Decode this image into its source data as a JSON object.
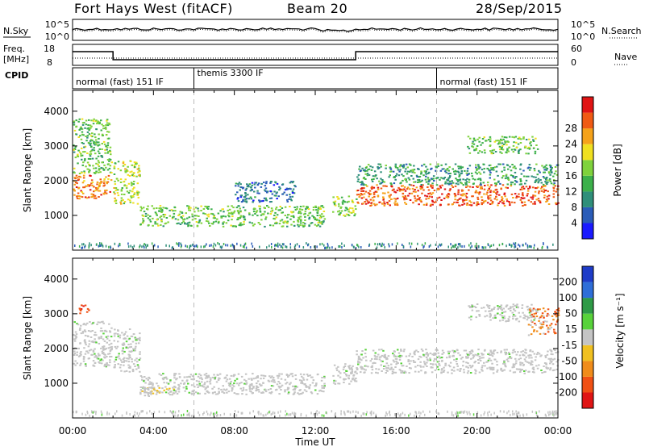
{
  "header": {
    "station": "Fort Hays West (fitACF)",
    "beam": "Beam 20",
    "date": "28/Sep/2015"
  },
  "noise_panel": {
    "left_label": "N.Sky",
    "left_ticks": [
      "10^5",
      "10^0"
    ],
    "right_label": "N.Search",
    "right_ticks": [
      "10^5",
      "10^0"
    ]
  },
  "freq_panel": {
    "left_label_1": "Freq.",
    "left_label_2": "[MHz]",
    "left_ticks": [
      "18",
      "8"
    ],
    "right_label": "Nave",
    "right_ticks": [
      "60",
      "0"
    ]
  },
  "cpid": {
    "label": "CPID",
    "segments": [
      {
        "name": "normal (fast) 151 IF",
        "start_hour": 0,
        "end_hour": 6
      },
      {
        "name": "themis 3300 IF",
        "start_hour": 6,
        "end_hour": 18
      },
      {
        "name": "normal (fast) 151 IF",
        "start_hour": 18,
        "end_hour": 24
      }
    ]
  },
  "xaxis": {
    "label": "Time UT",
    "ticks": [
      "00:00",
      "04:00",
      "08:00",
      "12:00",
      "16:00",
      "20:00",
      "00:00"
    ]
  },
  "power_colorbar": {
    "label": "Power [dB]",
    "ticks": [
      "4",
      "8",
      "12",
      "16",
      "20",
      "24",
      "28"
    ],
    "colors": [
      "#1a1aff",
      "#2a5cb8",
      "#2f8f7a",
      "#3cb04a",
      "#7fd23c",
      "#f0e020",
      "#f5a21a",
      "#f05a14",
      "#e01414"
    ]
  },
  "velocity_colorbar": {
    "label": "Velocity [m s⁻¹]",
    "ticks": [
      "200",
      "100",
      "50",
      "15",
      "-15",
      "-50",
      "-100",
      "-200"
    ],
    "colors": [
      "#1e3cc8",
      "#2e6ed8",
      "#2e9a46",
      "#58d23a",
      "#c4c4c4",
      "#f0c020",
      "#f08c1a",
      "#f05014",
      "#e01414"
    ]
  },
  "chart_data": [
    {
      "type": "heatmap",
      "panel": "power",
      "ylabel": "Slant Range [km]",
      "ylim": [
        0,
        4600
      ],
      "y_ticks": [
        1000,
        2000,
        3000,
        4000
      ],
      "xlim_hours": [
        0,
        24
      ],
      "value_units": "dB",
      "echo_bands": [
        {
          "start_hour": 0.0,
          "end_hour": 1.9,
          "range_km": [
            1500,
            2200
          ],
          "power_db": 26
        },
        {
          "start_hour": 0.0,
          "end_hour": 1.9,
          "range_km": [
            2200,
            3800
          ],
          "power_db": 14
        },
        {
          "start_hour": 2.0,
          "end_hour": 3.3,
          "range_km": [
            1350,
            2600
          ],
          "power_db": 18
        },
        {
          "start_hour": 3.3,
          "end_hour": 12.5,
          "range_km": [
            700,
            1300
          ],
          "power_db": 14
        },
        {
          "start_hour": 8.0,
          "end_hour": 11.0,
          "range_km": [
            1400,
            2000
          ],
          "power_db": 6
        },
        {
          "start_hour": 12.8,
          "end_hour": 14.0,
          "range_km": [
            1000,
            1600
          ],
          "power_db": 16
        },
        {
          "start_hour": 14.0,
          "end_hour": 24.0,
          "range_km": [
            1300,
            1900
          ],
          "power_db": 28
        },
        {
          "start_hour": 14.0,
          "end_hour": 24.0,
          "range_km": [
            1900,
            2500
          ],
          "power_db": 10
        },
        {
          "start_hour": 19.5,
          "end_hour": 23.0,
          "range_km": [
            2800,
            3300
          ],
          "power_db": 14
        }
      ]
    },
    {
      "type": "heatmap",
      "panel": "velocity",
      "ylabel": "Slant Range [km]",
      "ylim": [
        0,
        4600
      ],
      "y_ticks": [
        1000,
        2000,
        3000,
        4000
      ],
      "xlim_hours": [
        0,
        24
      ],
      "value_units": "m s-1",
      "echo_bands": [
        {
          "start_hour": 0.0,
          "end_hour": 1.9,
          "range_km": [
            1500,
            2800
          ],
          "velocity": 0
        },
        {
          "start_hour": 0.3,
          "end_hour": 0.8,
          "range_km": [
            3000,
            3300
          ],
          "velocity": -200
        },
        {
          "start_hour": 2.0,
          "end_hour": 3.3,
          "range_km": [
            1350,
            2600
          ],
          "velocity": 0
        },
        {
          "start_hour": 3.3,
          "end_hour": 5.0,
          "range_km": [
            650,
            900
          ],
          "velocity": -50
        },
        {
          "start_hour": 3.3,
          "end_hour": 12.5,
          "range_km": [
            700,
            1300
          ],
          "velocity": 0
        },
        {
          "start_hour": 12.8,
          "end_hour": 14.0,
          "range_km": [
            1000,
            1600
          ],
          "velocity": 0
        },
        {
          "start_hour": 14.0,
          "end_hour": 24.0,
          "range_km": [
            1300,
            2000
          ],
          "velocity": 0
        },
        {
          "start_hour": 19.5,
          "end_hour": 23.0,
          "range_km": [
            2800,
            3300
          ],
          "velocity": 0
        },
        {
          "start_hour": 22.5,
          "end_hour": 24.0,
          "range_km": [
            2400,
            3200
          ],
          "velocity": -100
        }
      ]
    }
  ]
}
